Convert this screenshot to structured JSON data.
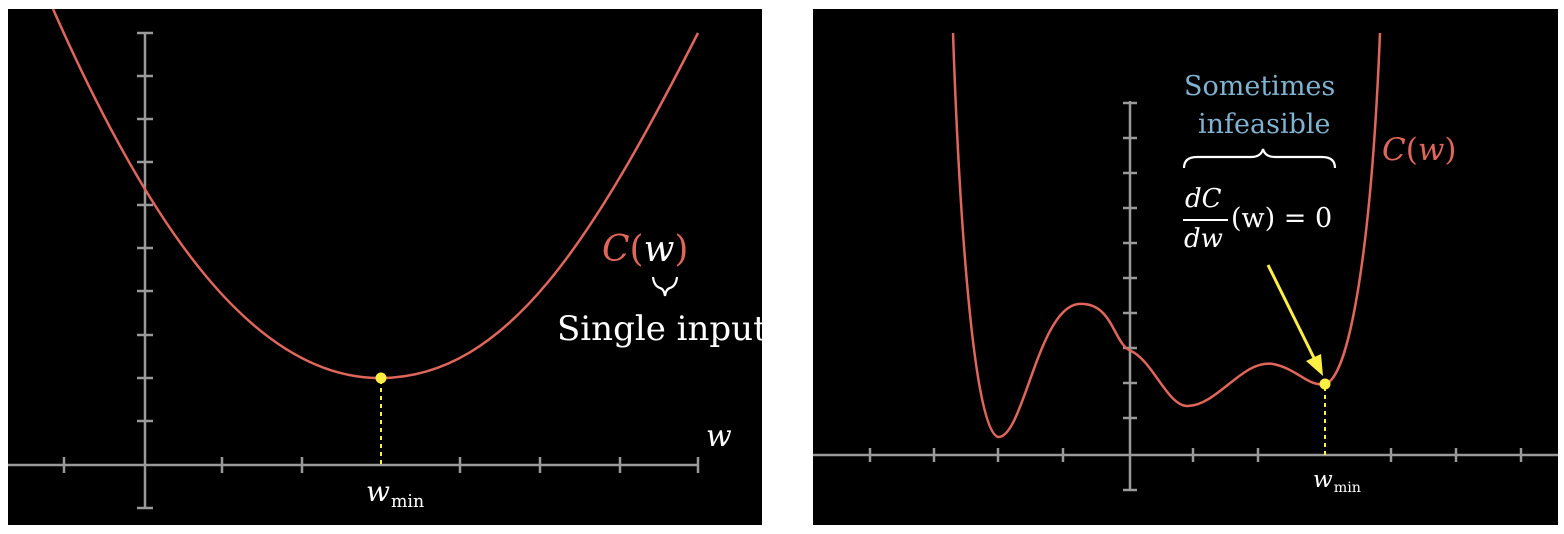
{
  "left_panel": {
    "axis_label": "w",
    "function_name": "C",
    "function_arg": "w",
    "brace_caption": "Single input",
    "min_label_var": "w",
    "min_label_sub": "min"
  },
  "right_panel": {
    "function_name": "C",
    "function_arg": "w",
    "note_line1": "Sometimes",
    "note_line2": "infeasible",
    "deriv_numerator": "dC",
    "deriv_denominator": "dw",
    "deriv_rhs": "(w) = 0",
    "min_label_var": "w",
    "min_label_sub": "min"
  },
  "colors": {
    "background": "#000000",
    "curve": "#e0665b",
    "axis": "#9a9a9a",
    "point": "#ffee44",
    "arrow": "#ffee44",
    "note_text": "#7fb3d0",
    "text": "#ffffff"
  }
}
